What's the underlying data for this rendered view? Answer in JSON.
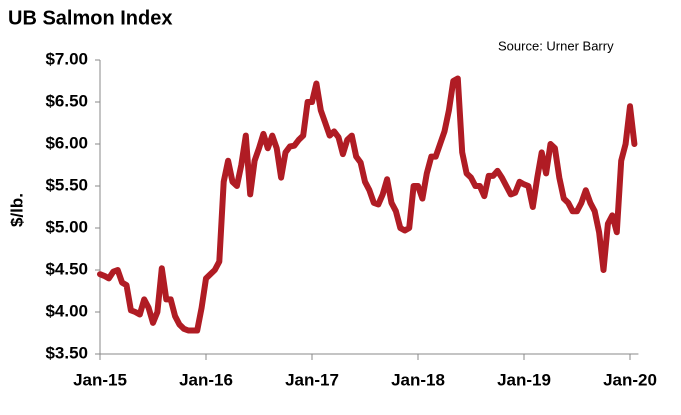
{
  "chart_data": {
    "type": "line",
    "title": "UB Salmon Index",
    "annotation": "Source: Urner Barry",
    "ylabel": "$/lb.",
    "categories": [
      "Jan-15",
      null,
      null,
      null,
      null,
      null,
      null,
      null,
      null,
      null,
      null,
      null,
      null,
      null,
      null,
      null,
      null,
      null,
      null,
      null,
      null,
      null,
      null,
      null,
      "Jan-16",
      null,
      null,
      null,
      null,
      null,
      null,
      null,
      null,
      null,
      null,
      null,
      null,
      null,
      null,
      null,
      null,
      null,
      null,
      null,
      null,
      null,
      null,
      null,
      "Jan-17",
      null,
      null,
      null,
      null,
      null,
      null,
      null,
      null,
      null,
      null,
      null,
      null,
      null,
      null,
      null,
      null,
      null,
      null,
      null,
      null,
      null,
      null,
      null,
      "Jan-18",
      null,
      null,
      null,
      null,
      null,
      null,
      null,
      null,
      null,
      null,
      null,
      null,
      null,
      null,
      null,
      null,
      null,
      null,
      null,
      null,
      null,
      null,
      null,
      "Jan-19",
      null,
      null,
      null,
      null,
      null,
      null,
      null,
      null,
      null,
      null,
      null,
      null,
      null,
      null,
      null,
      null,
      null,
      null,
      null,
      null,
      null,
      null,
      null,
      "Jan-20",
      null
    ],
    "series": [
      {
        "name": "UB Salmon Index",
        "color": "#b01c24",
        "values": [
          4.45,
          4.43,
          4.4,
          4.48,
          4.5,
          4.35,
          4.32,
          4.02,
          4.0,
          3.97,
          4.15,
          4.05,
          3.87,
          4.0,
          4.52,
          4.15,
          4.15,
          3.95,
          3.85,
          3.8,
          3.78,
          3.78,
          3.78,
          4.05,
          4.4,
          4.45,
          4.5,
          4.6,
          5.55,
          5.8,
          5.55,
          5.5,
          5.75,
          6.1,
          5.4,
          5.8,
          5.95,
          6.12,
          5.95,
          6.1,
          5.95,
          5.6,
          5.9,
          5.97,
          5.98,
          6.05,
          6.1,
          6.5,
          6.5,
          6.72,
          6.4,
          6.25,
          6.1,
          6.15,
          6.08,
          5.88,
          6.05,
          6.1,
          5.85,
          5.78,
          5.55,
          5.45,
          5.3,
          5.28,
          5.4,
          5.58,
          5.3,
          5.2,
          5.0,
          4.97,
          5.0,
          5.5,
          5.5,
          5.35,
          5.65,
          5.85,
          5.85,
          6.0,
          6.15,
          6.4,
          6.75,
          6.78,
          5.9,
          5.65,
          5.6,
          5.5,
          5.5,
          5.38,
          5.62,
          5.62,
          5.68,
          5.6,
          5.5,
          5.4,
          5.42,
          5.55,
          5.52,
          5.5,
          5.25,
          5.6,
          5.9,
          5.65,
          6.0,
          5.95,
          5.6,
          5.35,
          5.3,
          5.2,
          5.2,
          5.3,
          5.45,
          5.3,
          5.2,
          4.95,
          4.5,
          5.05,
          5.15,
          4.95,
          5.8,
          6.0,
          6.45,
          6.0
        ]
      }
    ],
    "ylim": [
      3.5,
      7.0
    ],
    "yticks": [
      {
        "value": 3.5,
        "label": "$3.50"
      },
      {
        "value": 4.0,
        "label": "$4.00"
      },
      {
        "value": 4.5,
        "label": "$4.50"
      },
      {
        "value": 5.0,
        "label": "$5.00"
      },
      {
        "value": 5.5,
        "label": "$5.50"
      },
      {
        "value": 6.0,
        "label": "$6.00"
      },
      {
        "value": 6.5,
        "label": "$6.50"
      },
      {
        "value": 7.0,
        "label": "$7.00"
      }
    ],
    "grid": false
  }
}
